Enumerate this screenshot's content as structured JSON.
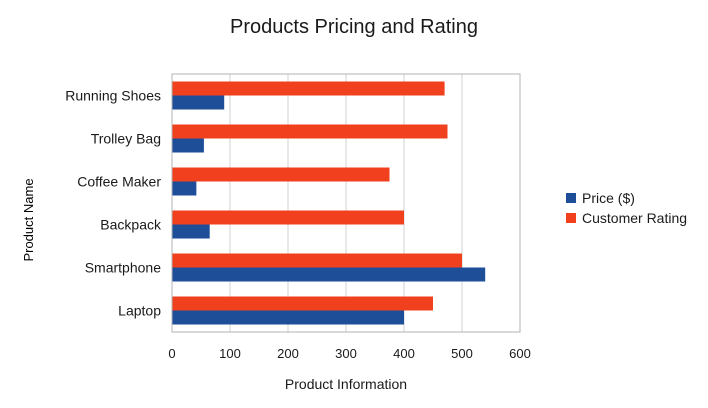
{
  "chart_data": {
    "type": "bar",
    "orientation": "horizontal",
    "title": "Products Pricing and Rating",
    "xlabel": "Product Information",
    "ylabel": "Product Name",
    "categories": [
      "Running Shoes",
      "Trolley Bag",
      "Coffee Maker",
      "Backpack",
      "Smartphone",
      "Laptop"
    ],
    "series": [
      {
        "name": "Price ($)",
        "color": "#1f4e99",
        "values": [
          90,
          55,
          42,
          65,
          540,
          400
        ]
      },
      {
        "name": "Customer Rating",
        "color": "#f0401e",
        "values": [
          470,
          475,
          375,
          400,
          500,
          450
        ]
      }
    ],
    "xlim": [
      0,
      600
    ],
    "xticks": [
      0,
      100,
      200,
      300,
      400,
      500,
      600
    ],
    "grid": "vertical",
    "legend_position": "right"
  }
}
